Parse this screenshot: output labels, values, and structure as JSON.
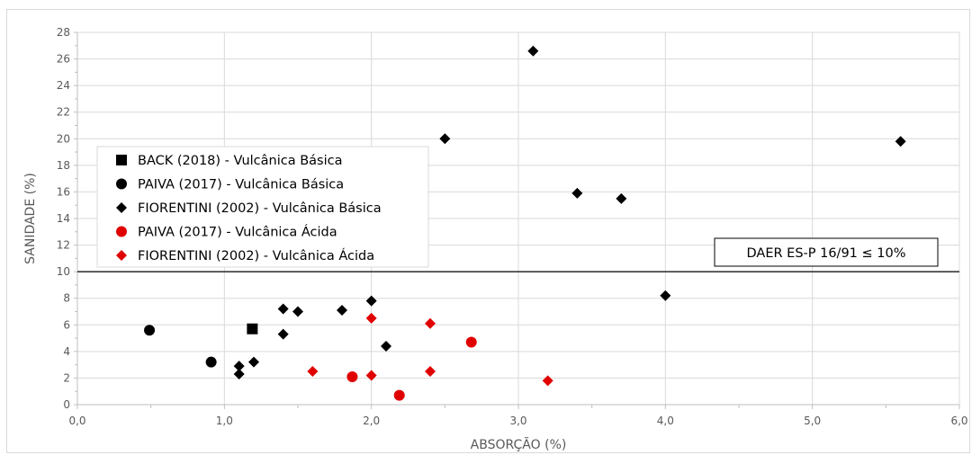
{
  "chart_data": {
    "type": "scatter",
    "xlabel": "ABSORÇÃO (%)",
    "ylabel": "SANIDADE (%)",
    "xlim": [
      0,
      6
    ],
    "ylim": [
      0,
      28
    ],
    "x_ticks": [
      "0,0",
      "1,0",
      "2,0",
      "3,0",
      "4,0",
      "5,0",
      "6,0"
    ],
    "y_ticks": [
      "0",
      "2",
      "4",
      "6",
      "8",
      "10",
      "12",
      "14",
      "16",
      "18",
      "20",
      "22",
      "24",
      "26",
      "28"
    ],
    "grid": true,
    "legend_position": "center-left",
    "reference_line": {
      "y": 10,
      "label": "DAER ES-P 16/91 ≤ 10%"
    },
    "series": [
      {
        "name": "BACK (2018) - Vulcânica Básica",
        "marker": "square",
        "color": "#000000",
        "points": [
          [
            1.19,
            5.7
          ]
        ]
      },
      {
        "name": "PAIVA (2017) - Vulcânica Básica",
        "marker": "circle",
        "color": "#000000",
        "points": [
          [
            0.49,
            5.6
          ],
          [
            0.91,
            3.2
          ]
        ]
      },
      {
        "name": "FIORENTINI (2002) - Vulcânica Básica",
        "marker": "diamond",
        "color": "#000000",
        "points": [
          [
            1.1,
            2.9
          ],
          [
            1.1,
            2.3
          ],
          [
            1.2,
            3.2
          ],
          [
            1.4,
            7.2
          ],
          [
            1.4,
            5.3
          ],
          [
            1.5,
            7.0
          ],
          [
            1.8,
            7.1
          ],
          [
            2.0,
            7.8
          ],
          [
            2.1,
            4.4
          ],
          [
            2.5,
            20.0
          ],
          [
            3.1,
            26.6
          ],
          [
            3.4,
            15.9
          ],
          [
            3.7,
            15.5
          ],
          [
            4.0,
            8.2
          ],
          [
            5.6,
            19.8
          ]
        ]
      },
      {
        "name": "PAIVA (2017) - Vulcânica Ácida",
        "marker": "circle",
        "color": "#E00000",
        "points": [
          [
            1.87,
            2.1
          ],
          [
            2.19,
            0.7
          ],
          [
            2.68,
            4.7
          ]
        ]
      },
      {
        "name": "FIORENTINI (2002) - Vulcânica Ácida",
        "marker": "diamond",
        "color": "#E00000",
        "points": [
          [
            1.6,
            2.5
          ],
          [
            2.0,
            6.5
          ],
          [
            2.0,
            2.2
          ],
          [
            2.4,
            6.1
          ],
          [
            2.4,
            2.5
          ],
          [
            3.2,
            1.8
          ]
        ]
      }
    ]
  }
}
